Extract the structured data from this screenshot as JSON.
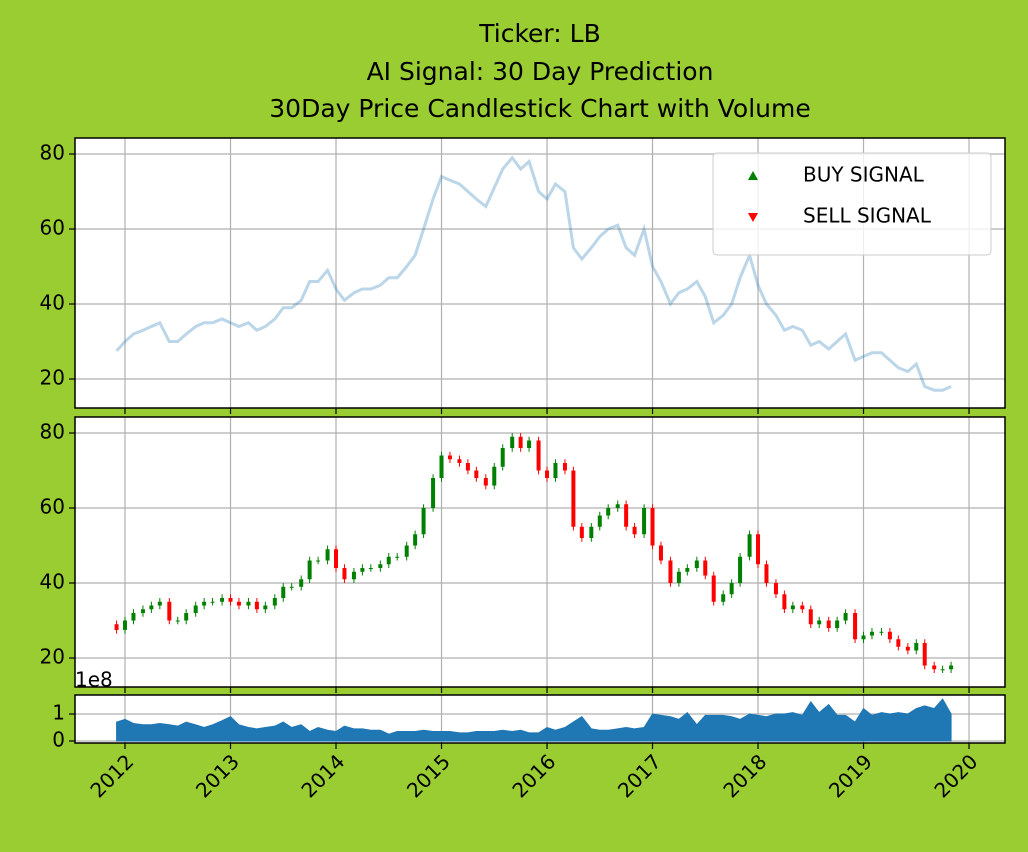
{
  "chart_data": [
    {
      "type": "line",
      "title": [
        "Ticker: LB",
        "AI Signal: 30 Day Prediction",
        "30Day Price Candlestick Chart with Volume"
      ],
      "x": [
        2011.92,
        2012.0,
        2012.08,
        2012.17,
        2012.25,
        2012.33,
        2012.42,
        2012.5,
        2012.58,
        2012.67,
        2012.75,
        2012.83,
        2012.92,
        2013.0,
        2013.08,
        2013.17,
        2013.25,
        2013.33,
        2013.42,
        2013.5,
        2013.58,
        2013.67,
        2013.75,
        2013.83,
        2013.92,
        2014.0,
        2014.08,
        2014.17,
        2014.25,
        2014.33,
        2014.42,
        2014.5,
        2014.58,
        2014.67,
        2014.75,
        2014.83,
        2014.92,
        2015.0,
        2015.08,
        2015.17,
        2015.25,
        2015.33,
        2015.42,
        2015.5,
        2015.58,
        2015.67,
        2015.75,
        2015.83,
        2015.92,
        2016.0,
        2016.08,
        2016.17,
        2016.25,
        2016.33,
        2016.42,
        2016.5,
        2016.58,
        2016.67,
        2016.75,
        2016.83,
        2016.92,
        2017.0,
        2017.08,
        2017.17,
        2017.25,
        2017.33,
        2017.42,
        2017.5,
        2017.58,
        2017.67,
        2017.75,
        2017.83,
        2017.92,
        2018.0,
        2018.08,
        2018.17,
        2018.25,
        2018.33,
        2018.42,
        2018.5,
        2018.58,
        2018.67,
        2018.75,
        2018.83,
        2018.92,
        2019.0,
        2019.08,
        2019.17,
        2019.25,
        2019.33,
        2019.42,
        2019.5,
        2019.58,
        2019.67,
        2019.75,
        2019.83
      ],
      "values": [
        27.5,
        30,
        32,
        33,
        34,
        35,
        30,
        30,
        32,
        34,
        35,
        35,
        36,
        35,
        34,
        35,
        33,
        34,
        36,
        39,
        39,
        41,
        46,
        46,
        49,
        44,
        41,
        43,
        44,
        44,
        45,
        47,
        47,
        50,
        53,
        60,
        68,
        74,
        73,
        72,
        70,
        68,
        66,
        71,
        76,
        79,
        76,
        78,
        70,
        68,
        72,
        70,
        55,
        52,
        55,
        58,
        60,
        61,
        55,
        53,
        60,
        50,
        46,
        40,
        43,
        44,
        46,
        42,
        35,
        37,
        40,
        47,
        53,
        45,
        40,
        37,
        33,
        34,
        33,
        29,
        30,
        28,
        30,
        32,
        25,
        26,
        27,
        27,
        25,
        23,
        22,
        24,
        18,
        17,
        17,
        18
      ],
      "color": "#1f77b4",
      "alpha": 0.3,
      "legend": [
        {
          "name": "BUY SIGNAL",
          "color": "#008000",
          "marker": "^"
        },
        {
          "name": "SELL SIGNAL",
          "color": "#ff0000",
          "marker": "v"
        }
      ],
      "legend_position": "upper right",
      "xlim": [
        2011.526,
        2020.341
      ],
      "xticks": [
        2012,
        2013,
        2014,
        2015,
        2016,
        2017,
        2018,
        2019,
        2020
      ],
      "x_tick_labels": false,
      "ylim": [
        12.27,
        84.27
      ],
      "yticks": [
        20,
        40,
        60,
        80
      ],
      "grid": true
    },
    {
      "type": "candlestick",
      "x": [
        2011.92,
        2012.0,
        2012.08,
        2012.17,
        2012.25,
        2012.33,
        2012.42,
        2012.5,
        2012.58,
        2012.67,
        2012.75,
        2012.83,
        2012.92,
        2013.0,
        2013.08,
        2013.17,
        2013.25,
        2013.33,
        2013.42,
        2013.5,
        2013.58,
        2013.67,
        2013.75,
        2013.83,
        2013.92,
        2014.0,
        2014.08,
        2014.17,
        2014.25,
        2014.33,
        2014.42,
        2014.5,
        2014.58,
        2014.67,
        2014.75,
        2014.83,
        2014.92,
        2015.0,
        2015.08,
        2015.17,
        2015.25,
        2015.33,
        2015.42,
        2015.5,
        2015.58,
        2015.67,
        2015.75,
        2015.83,
        2015.92,
        2016.0,
        2016.08,
        2016.17,
        2016.25,
        2016.33,
        2016.42,
        2016.5,
        2016.58,
        2016.67,
        2016.75,
        2016.83,
        2016.92,
        2017.0,
        2017.08,
        2017.17,
        2017.25,
        2017.33,
        2017.42,
        2017.5,
        2017.58,
        2017.67,
        2017.75,
        2017.83,
        2017.92,
        2018.0,
        2018.08,
        2018.17,
        2018.25,
        2018.33,
        2018.42,
        2018.5,
        2018.58,
        2018.67,
        2018.75,
        2018.83,
        2018.92,
        2019.0,
        2019.08,
        2019.17,
        2019.25,
        2019.33,
        2019.42,
        2019.5,
        2019.58,
        2019.67,
        2019.75,
        2019.83
      ],
      "open": [
        29,
        27.5,
        30,
        32,
        33,
        34,
        35,
        30,
        30,
        32,
        34,
        35,
        35,
        36,
        35,
        34,
        35,
        33,
        34,
        36,
        39,
        39,
        41,
        46,
        46,
        49,
        44,
        41,
        43,
        44,
        44,
        45,
        47,
        47,
        50,
        53,
        60,
        68,
        74,
        73,
        72,
        70,
        68,
        66,
        71,
        76,
        79,
        76,
        78,
        70,
        68,
        72,
        70,
        55,
        52,
        55,
        58,
        60,
        61,
        55,
        53,
        60,
        50,
        46,
        40,
        43,
        44,
        46,
        42,
        35,
        37,
        40,
        47,
        53,
        45,
        40,
        37,
        33,
        34,
        33,
        29,
        30,
        28,
        30,
        32,
        25,
        26,
        27,
        27,
        25,
        23,
        22,
        24,
        18,
        17,
        17
      ],
      "high": [
        30,
        31,
        33,
        34,
        35,
        36,
        36,
        31,
        33,
        35,
        36,
        36,
        37,
        37,
        36,
        36,
        36,
        35,
        37,
        40,
        40,
        42,
        47,
        47,
        50,
        50,
        45,
        44,
        45,
        45,
        46,
        48,
        48,
        51,
        54,
        61,
        69,
        75,
        75,
        74,
        73,
        71,
        69,
        72,
        77,
        80,
        80,
        79,
        79,
        71,
        73,
        73,
        71,
        56,
        56,
        59,
        61,
        62,
        62,
        56,
        61,
        61,
        51,
        47,
        44,
        45,
        47,
        47,
        43,
        38,
        41,
        48,
        54,
        54,
        46,
        41,
        38,
        35,
        35,
        34,
        31,
        31,
        31,
        33,
        33,
        27,
        28,
        28,
        28,
        26,
        24,
        25,
        25,
        19,
        18,
        19
      ],
      "low": [
        26.5,
        26.5,
        29,
        31,
        32,
        33,
        29,
        29,
        29,
        31,
        33,
        34,
        34,
        34,
        33,
        33,
        32,
        32,
        33,
        35,
        38,
        38,
        40,
        45,
        45,
        43,
        40,
        40,
        42,
        43,
        43,
        44,
        46,
        46,
        49,
        52,
        59,
        67,
        72,
        71,
        69,
        67,
        65,
        65,
        70,
        75,
        75,
        75,
        69,
        67,
        67,
        69,
        54,
        51,
        51,
        54,
        57,
        59,
        54,
        52,
        52,
        49,
        45,
        39,
        39,
        42,
        43,
        41,
        34,
        34,
        36,
        39,
        46,
        44,
        39,
        36,
        32,
        32,
        32,
        28,
        28,
        27,
        27,
        29,
        24,
        24,
        25,
        26,
        24,
        22,
        21,
        21,
        17,
        16,
        16,
        16
      ],
      "close": [
        27.5,
        30,
        32,
        33,
        34,
        35,
        30,
        30,
        32,
        34,
        35,
        35,
        36,
        35,
        34,
        35,
        33,
        34,
        36,
        39,
        39,
        41,
        46,
        46,
        49,
        44,
        41,
        43,
        44,
        44,
        45,
        47,
        47,
        50,
        53,
        60,
        68,
        74,
        73,
        72,
        70,
        68,
        66,
        71,
        76,
        79,
        76,
        78,
        70,
        68,
        72,
        70,
        55,
        52,
        55,
        58,
        60,
        61,
        55,
        53,
        60,
        50,
        46,
        40,
        43,
        44,
        46,
        42,
        35,
        37,
        40,
        47,
        53,
        45,
        40,
        37,
        33,
        34,
        33,
        29,
        30,
        28,
        30,
        32,
        25,
        26,
        27,
        27,
        25,
        23,
        22,
        24,
        18,
        17,
        17,
        18
      ],
      "up_color": "#008000",
      "down_color": "#ff0000",
      "xlim": [
        2011.526,
        2020.341
      ],
      "xticks": [
        2012,
        2013,
        2014,
        2015,
        2016,
        2017,
        2018,
        2019,
        2020
      ],
      "x_tick_labels": false,
      "ylim": [
        12.27,
        84.27
      ],
      "yticks": [
        20,
        40,
        60,
        80
      ],
      "grid": true
    },
    {
      "type": "area",
      "offset_label": "1e8",
      "x": [
        2011.92,
        2012.0,
        2012.08,
        2012.17,
        2012.25,
        2012.33,
        2012.42,
        2012.5,
        2012.58,
        2012.67,
        2012.75,
        2012.83,
        2012.92,
        2013.0,
        2013.08,
        2013.17,
        2013.25,
        2013.33,
        2013.42,
        2013.5,
        2013.58,
        2013.67,
        2013.75,
        2013.83,
        2013.92,
        2014.0,
        2014.08,
        2014.17,
        2014.25,
        2014.33,
        2014.42,
        2014.5,
        2014.58,
        2014.67,
        2014.75,
        2014.83,
        2014.92,
        2015.0,
        2015.08,
        2015.17,
        2015.25,
        2015.33,
        2015.42,
        2015.5,
        2015.58,
        2015.67,
        2015.75,
        2015.83,
        2015.92,
        2016.0,
        2016.08,
        2016.17,
        2016.25,
        2016.33,
        2016.42,
        2016.5,
        2016.58,
        2016.67,
        2016.75,
        2016.83,
        2016.92,
        2017.0,
        2017.08,
        2017.17,
        2017.25,
        2017.33,
        2017.42,
        2017.5,
        2017.58,
        2017.67,
        2017.75,
        2017.83,
        2017.92,
        2018.0,
        2018.08,
        2018.17,
        2018.25,
        2018.33,
        2018.42,
        2018.5,
        2018.58,
        2018.67,
        2018.75,
        2018.83,
        2018.92,
        2019.0,
        2019.08,
        2019.17,
        2019.25,
        2019.33,
        2019.42,
        2019.5,
        2019.58,
        2019.67,
        2019.75,
        2019.83
      ],
      "values": [
        0.7,
        0.8,
        0.65,
        0.6,
        0.6,
        0.65,
        0.6,
        0.55,
        0.7,
        0.6,
        0.5,
        0.6,
        0.75,
        0.9,
        0.6,
        0.5,
        0.45,
        0.5,
        0.55,
        0.7,
        0.5,
        0.6,
        0.35,
        0.5,
        0.4,
        0.35,
        0.55,
        0.45,
        0.45,
        0.4,
        0.4,
        0.25,
        0.35,
        0.35,
        0.35,
        0.4,
        0.35,
        0.35,
        0.35,
        0.3,
        0.3,
        0.35,
        0.35,
        0.35,
        0.4,
        0.35,
        0.4,
        0.3,
        0.3,
        0.5,
        0.4,
        0.5,
        0.7,
        0.9,
        0.45,
        0.4,
        0.4,
        0.45,
        0.5,
        0.45,
        0.5,
        1.0,
        0.95,
        0.9,
        0.8,
        1.05,
        0.6,
        0.95,
        0.95,
        0.95,
        0.9,
        0.8,
        1.0,
        0.95,
        0.9,
        1.0,
        1.0,
        1.05,
        0.95,
        1.45,
        1.05,
        1.35,
        0.95,
        0.95,
        0.7,
        1.2,
        0.95,
        1.05,
        1.0,
        1.05,
        1.0,
        1.2,
        1.3,
        1.2,
        1.55,
        1.0
      ],
      "color": "#1f77b4",
      "xlim": [
        2011.526,
        2020.341
      ],
      "xticks": [
        2012,
        2013,
        2014,
        2015,
        2016,
        2017,
        2018,
        2019,
        2020
      ],
      "x_tick_labels": true,
      "ylim": [
        -0.074,
        1.704
      ],
      "yticks": [
        0,
        1
      ],
      "grid": true
    }
  ]
}
